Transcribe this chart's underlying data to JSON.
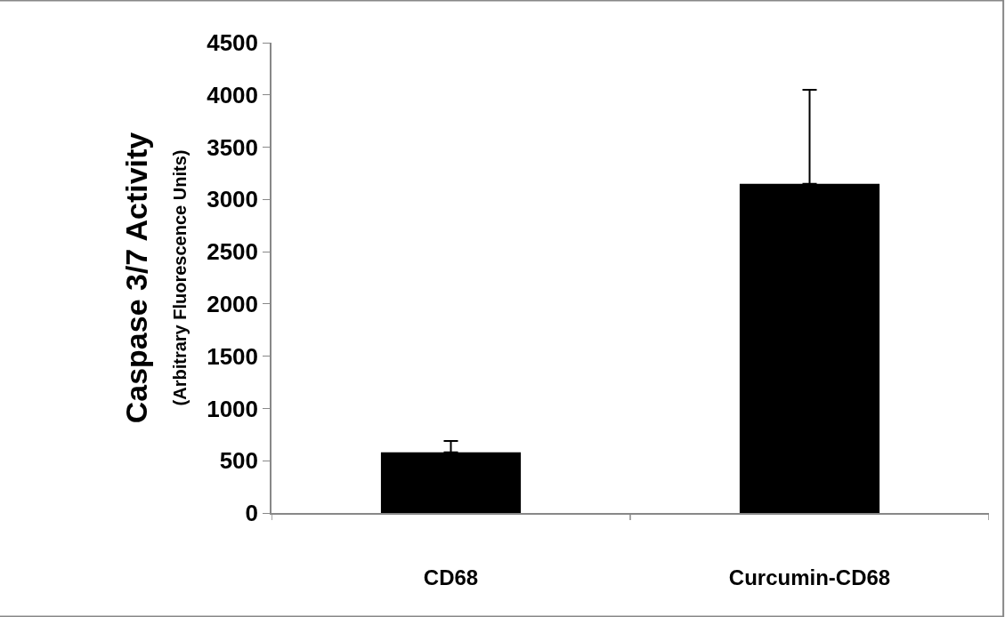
{
  "chart_data": {
    "type": "bar",
    "categories": [
      "CD68",
      "Curcumin-CD68"
    ],
    "series": [
      {
        "color": "#000000",
        "values": [
          580,
          3150
        ],
        "errors": [
          110,
          900
        ]
      }
    ],
    "ylabel": "Caspase 3/7 Activity\n(Arbitrary Fluorescence Units)",
    "ylim": [
      0,
      4500
    ],
    "yticks": [
      0,
      500,
      1000,
      1500,
      2000,
      2500,
      3000,
      3500,
      4000,
      4500
    ],
    "legend": false
  }
}
